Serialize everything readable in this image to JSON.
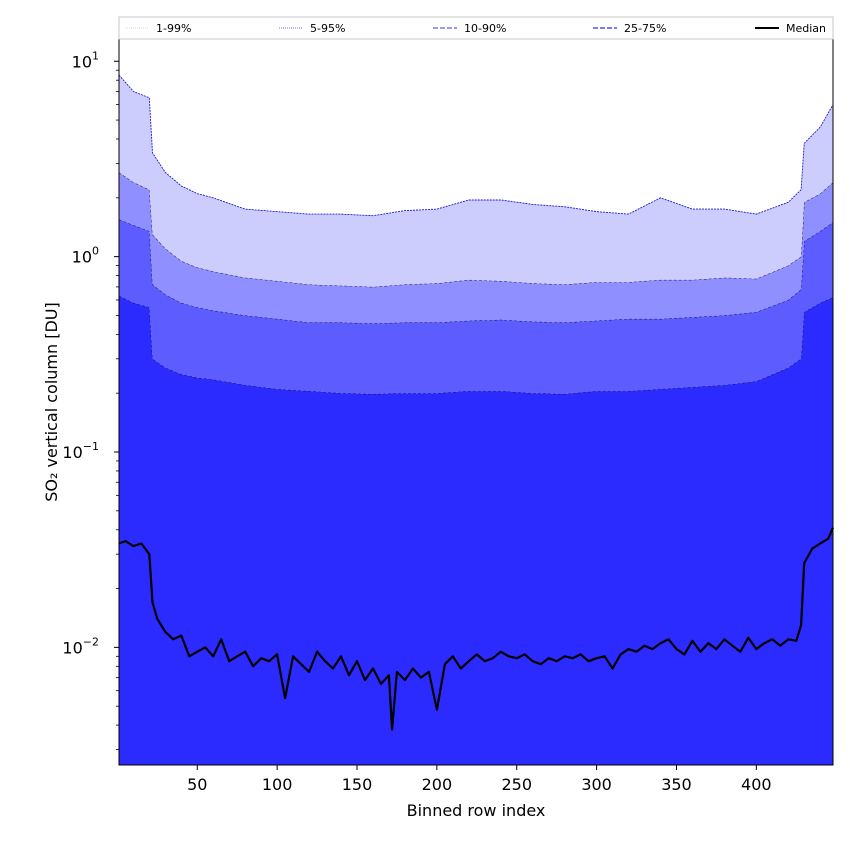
{
  "chart_data": {
    "type": "area",
    "xlabel": "Binned row index",
    "ylabel": "SO₂ vertical column [DU]",
    "xlim": [
      1,
      448
    ],
    "ylim": [
      0.0025,
      13
    ],
    "yscale": "log",
    "x_ticks": [
      50,
      100,
      150,
      200,
      250,
      300,
      350,
      400
    ],
    "x_tick_labels": [
      "50",
      "100",
      "150",
      "200",
      "250",
      "300",
      "350",
      "400"
    ],
    "y_ticks": [
      0.01,
      0.1,
      1,
      10
    ],
    "y_tick_labels": [
      [
        "10",
        "−2"
      ],
      [
        "10",
        "−1"
      ],
      [
        "10",
        "0"
      ],
      [
        "10",
        "1"
      ]
    ],
    "legend": {
      "placement": "top",
      "entries": [
        {
          "label": "1-99%",
          "color": "#dcdcf7",
          "style": "dotted"
        },
        {
          "label": "5-95%",
          "color": "#8f8fff",
          "style": "dotted"
        },
        {
          "label": "10-90%",
          "color": "#5c5cff",
          "style": "dashed"
        },
        {
          "label": "25-75%",
          "color": "#2b2bff",
          "style": "dashed"
        },
        {
          "label": "Median",
          "color": "#000000",
          "style": "solid"
        }
      ]
    },
    "x": [
      1,
      10,
      20,
      22,
      30,
      40,
      50,
      60,
      80,
      100,
      120,
      140,
      160,
      180,
      200,
      220,
      240,
      260,
      280,
      300,
      320,
      340,
      360,
      380,
      400,
      420,
      428,
      430,
      440,
      448
    ],
    "bands": [
      {
        "name": "5-95%",
        "upper": [
          8.5,
          7.0,
          6.5,
          3.4,
          2.7,
          2.3,
          2.1,
          2.0,
          1.75,
          1.7,
          1.65,
          1.65,
          1.62,
          1.72,
          1.75,
          1.95,
          1.95,
          1.85,
          1.8,
          1.7,
          1.65,
          2.0,
          1.75,
          1.75,
          1.65,
          1.9,
          2.2,
          3.8,
          4.6,
          6.0
        ],
        "lower": [
          2.7,
          2.4,
          2.2,
          1.3,
          1.1,
          0.95,
          0.88,
          0.84,
          0.78,
          0.75,
          0.72,
          0.71,
          0.7,
          0.72,
          0.73,
          0.76,
          0.75,
          0.73,
          0.72,
          0.74,
          0.74,
          0.76,
          0.76,
          0.78,
          0.77,
          0.9,
          1.0,
          1.9,
          2.1,
          2.4
        ]
      },
      {
        "name": "10-90%",
        "upper": [
          2.7,
          2.4,
          2.2,
          1.3,
          1.1,
          0.95,
          0.88,
          0.84,
          0.78,
          0.75,
          0.72,
          0.71,
          0.7,
          0.72,
          0.73,
          0.76,
          0.75,
          0.73,
          0.72,
          0.74,
          0.74,
          0.76,
          0.76,
          0.78,
          0.77,
          0.9,
          1.0,
          1.9,
          2.1,
          2.4
        ],
        "lower": [
          1.55,
          1.45,
          1.35,
          0.72,
          0.64,
          0.58,
          0.55,
          0.53,
          0.5,
          0.48,
          0.46,
          0.46,
          0.455,
          0.46,
          0.46,
          0.47,
          0.475,
          0.465,
          0.46,
          0.47,
          0.48,
          0.48,
          0.49,
          0.5,
          0.52,
          0.6,
          0.68,
          1.2,
          1.35,
          1.5
        ]
      },
      {
        "name": "25-75%",
        "upper": [
          1.55,
          1.45,
          1.35,
          0.72,
          0.64,
          0.58,
          0.55,
          0.53,
          0.5,
          0.48,
          0.46,
          0.46,
          0.455,
          0.46,
          0.46,
          0.47,
          0.475,
          0.465,
          0.46,
          0.47,
          0.48,
          0.48,
          0.49,
          0.5,
          0.52,
          0.6,
          0.68,
          1.2,
          1.35,
          1.5
        ],
        "lower": [
          0.63,
          0.58,
          0.55,
          0.3,
          0.27,
          0.25,
          0.24,
          0.235,
          0.22,
          0.21,
          0.205,
          0.2,
          0.198,
          0.2,
          0.2,
          0.205,
          0.205,
          0.2,
          0.198,
          0.205,
          0.205,
          0.21,
          0.215,
          0.22,
          0.23,
          0.27,
          0.3,
          0.52,
          0.58,
          0.62
        ]
      },
      {
        "name": "1-99%",
        "upper": [
          0.63,
          0.58,
          0.55,
          0.3,
          0.27,
          0.25,
          0.24,
          0.235,
          0.22,
          0.21,
          0.205,
          0.2,
          0.198,
          0.2,
          0.2,
          0.205,
          0.205,
          0.2,
          0.198,
          0.205,
          0.205,
          0.21,
          0.215,
          0.22,
          0.23,
          0.27,
          0.3,
          0.52,
          0.58,
          0.62
        ],
        "lower": [
          0.0025,
          0.0025,
          0.0025,
          0.0025,
          0.0025,
          0.0025,
          0.0025,
          0.0025,
          0.0025,
          0.0025,
          0.0025,
          0.0025,
          0.0025,
          0.0025,
          0.0025,
          0.0025,
          0.0025,
          0.0025,
          0.0025,
          0.0025,
          0.0025,
          0.0025,
          0.0025,
          0.0025,
          0.0025,
          0.0025,
          0.0025,
          0.0025,
          0.0025,
          0.0025
        ]
      }
    ],
    "band_colors": {
      "5-95%": "#cdcdfd",
      "10-90%": "#8f8fff",
      "25-75%": "#5c5cff",
      "1-99%": "#2b2bff"
    },
    "median": {
      "x": [
        1,
        5,
        10,
        15,
        20,
        22,
        25,
        30,
        35,
        40,
        45,
        50,
        55,
        60,
        65,
        70,
        75,
        80,
        85,
        90,
        95,
        100,
        105,
        110,
        115,
        120,
        125,
        130,
        135,
        140,
        145,
        150,
        155,
        160,
        165,
        170,
        172,
        175,
        180,
        185,
        190,
        195,
        200,
        205,
        210,
        215,
        220,
        225,
        230,
        235,
        240,
        245,
        250,
        255,
        260,
        265,
        270,
        275,
        280,
        285,
        290,
        295,
        300,
        305,
        310,
        315,
        320,
        325,
        330,
        335,
        340,
        345,
        350,
        355,
        360,
        365,
        370,
        375,
        380,
        385,
        390,
        395,
        400,
        405,
        410,
        415,
        420,
        425,
        428,
        430,
        435,
        440,
        445,
        448
      ],
      "values": [
        0.034,
        0.035,
        0.033,
        0.034,
        0.03,
        0.017,
        0.014,
        0.012,
        0.011,
        0.0115,
        0.009,
        0.0095,
        0.01,
        0.009,
        0.011,
        0.0085,
        0.009,
        0.0095,
        0.008,
        0.0088,
        0.0085,
        0.0092,
        0.0055,
        0.009,
        0.0082,
        0.0075,
        0.0095,
        0.0085,
        0.0078,
        0.009,
        0.0072,
        0.0085,
        0.0068,
        0.0078,
        0.0065,
        0.0072,
        0.0038,
        0.0075,
        0.0068,
        0.0078,
        0.007,
        0.0075,
        0.0048,
        0.0082,
        0.009,
        0.0078,
        0.0085,
        0.0092,
        0.0085,
        0.0088,
        0.0095,
        0.009,
        0.0088,
        0.0092,
        0.0085,
        0.0082,
        0.0088,
        0.0085,
        0.009,
        0.0088,
        0.0092,
        0.0085,
        0.0088,
        0.009,
        0.0078,
        0.0092,
        0.0098,
        0.0095,
        0.0102,
        0.0098,
        0.0105,
        0.011,
        0.0098,
        0.0092,
        0.0108,
        0.0095,
        0.0105,
        0.0098,
        0.011,
        0.0102,
        0.0095,
        0.0112,
        0.0098,
        0.0105,
        0.011,
        0.0102,
        0.011,
        0.0108,
        0.013,
        0.027,
        0.032,
        0.034,
        0.036,
        0.041
      ]
    }
  }
}
